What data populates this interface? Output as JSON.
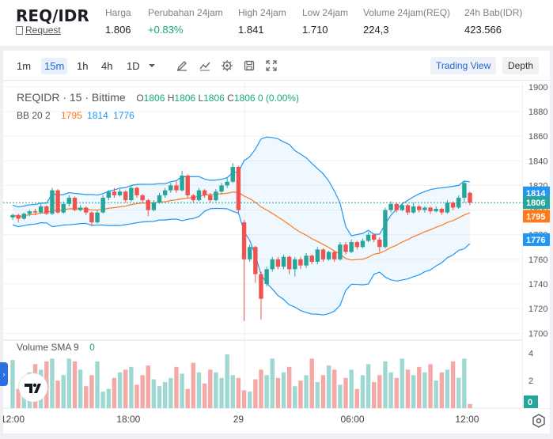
{
  "ticker": {
    "pair": "REQ/IDR",
    "link": "Request",
    "stats": [
      {
        "label": "Harga",
        "value": "1.806"
      },
      {
        "label": "Perubahan 24jam",
        "value": "+0.83%"
      },
      {
        "label": "High 24jam",
        "value": "1.841"
      },
      {
        "label": "Low 24jam",
        "value": "1.710"
      },
      {
        "label": "Volume 24jam(REQ)",
        "value": "224,3"
      },
      {
        "label": "24h Bab(IDR)",
        "value": "423.566"
      }
    ]
  },
  "toolbar": {
    "timeframes": [
      "1m",
      "15m",
      "1h",
      "4h",
      "1D"
    ],
    "active_timeframe": "15m",
    "icons": [
      "dropdown-caret-icon",
      "draw-pen-icon",
      "indicator-icon",
      "settings-gear-icon",
      "save-icon",
      "fullscreen-icon"
    ],
    "views": [
      "Trading View",
      "Depth"
    ],
    "active_view": "Trading View"
  },
  "legend": {
    "symbol": "REQIDR · 15 · Bittime",
    "o_label": "O",
    "o": "1806",
    "h_label": "H",
    "h": "1806",
    "l_label": "L",
    "l": "1806",
    "c_label": "C",
    "c": "1806",
    "change": "0 (0.00%)",
    "bb_label": "BB 20 2",
    "bb_basis": "1795",
    "bb_upper": "1814",
    "bb_lower": "1776",
    "volume_label": "Volume SMA 9",
    "volume_value": "0"
  },
  "colors": {
    "up": "#26a69a",
    "down": "#ef5350",
    "basis": "#ff7a1a",
    "band": "#2196f3",
    "up_vol": "#9fd8d2",
    "down_vol": "#f5a9a7"
  },
  "chart_data": {
    "type": "candlestick",
    "price_axis": {
      "ticks": [
        1700,
        1720,
        1740,
        1760,
        1780,
        1800,
        1820,
        1840,
        1860,
        1880,
        1900
      ],
      "range": [
        1697,
        1905
      ]
    },
    "time_axis": {
      "ticks": [
        "12:00",
        "18:00",
        "29",
        "06:00",
        "12:00"
      ]
    },
    "volume_axis": {
      "ticks": [
        2,
        4
      ],
      "range": [
        0,
        4.6
      ]
    },
    "price_labels": [
      {
        "text": "1814",
        "value": 1814,
        "color": "#2196f3"
      },
      {
        "text": "1806",
        "value": 1806,
        "color": "#26a69a"
      },
      {
        "text": "1795",
        "value": 1795,
        "color": "#ff7a1a"
      },
      {
        "text": "1776",
        "value": 1776,
        "color": "#2196f3"
      }
    ],
    "volume_label": {
      "text": "0",
      "color": "#26a69a"
    },
    "candles": [
      {
        "o": 1794,
        "c": 1796,
        "h": 1797,
        "l": 1792
      },
      {
        "o": 1796,
        "c": 1793,
        "h": 1797,
        "l": 1790
      },
      {
        "o": 1793,
        "c": 1797,
        "h": 1798,
        "l": 1792
      },
      {
        "o": 1797,
        "c": 1799,
        "h": 1800,
        "l": 1795
      },
      {
        "o": 1799,
        "c": 1798,
        "h": 1801,
        "l": 1796
      },
      {
        "o": 1798,
        "c": 1803,
        "h": 1805,
        "l": 1797
      },
      {
        "o": 1803,
        "c": 1797,
        "h": 1804,
        "l": 1796
      },
      {
        "o": 1797,
        "c": 1816,
        "h": 1818,
        "l": 1796
      },
      {
        "o": 1816,
        "c": 1798,
        "h": 1817,
        "l": 1797
      },
      {
        "o": 1798,
        "c": 1805,
        "h": 1807,
        "l": 1797
      },
      {
        "o": 1805,
        "c": 1810,
        "h": 1812,
        "l": 1803
      },
      {
        "o": 1810,
        "c": 1800,
        "h": 1811,
        "l": 1799
      },
      {
        "o": 1800,
        "c": 1802,
        "h": 1804,
        "l": 1799
      },
      {
        "o": 1802,
        "c": 1798,
        "h": 1803,
        "l": 1796
      },
      {
        "o": 1798,
        "c": 1790,
        "h": 1799,
        "l": 1787
      },
      {
        "o": 1790,
        "c": 1798,
        "h": 1800,
        "l": 1789
      },
      {
        "o": 1798,
        "c": 1810,
        "h": 1812,
        "l": 1797
      },
      {
        "o": 1810,
        "c": 1815,
        "h": 1816,
        "l": 1808
      },
      {
        "o": 1815,
        "c": 1812,
        "h": 1818,
        "l": 1810
      },
      {
        "o": 1812,
        "c": 1815,
        "h": 1817,
        "l": 1811
      },
      {
        "o": 1815,
        "c": 1808,
        "h": 1816,
        "l": 1806
      },
      {
        "o": 1808,
        "c": 1818,
        "h": 1820,
        "l": 1807
      },
      {
        "o": 1818,
        "c": 1812,
        "h": 1819,
        "l": 1810
      },
      {
        "o": 1812,
        "c": 1808,
        "h": 1813,
        "l": 1806
      },
      {
        "o": 1808,
        "c": 1800,
        "h": 1809,
        "l": 1795
      },
      {
        "o": 1800,
        "c": 1806,
        "h": 1808,
        "l": 1799
      },
      {
        "o": 1806,
        "c": 1812,
        "h": 1814,
        "l": 1805
      },
      {
        "o": 1812,
        "c": 1816,
        "h": 1818,
        "l": 1810
      },
      {
        "o": 1816,
        "c": 1820,
        "h": 1822,
        "l": 1814
      },
      {
        "o": 1820,
        "c": 1816,
        "h": 1824,
        "l": 1814
      },
      {
        "o": 1816,
        "c": 1828,
        "h": 1832,
        "l": 1815
      },
      {
        "o": 1828,
        "c": 1812,
        "h": 1829,
        "l": 1810
      },
      {
        "o": 1812,
        "c": 1808,
        "h": 1813,
        "l": 1806
      },
      {
        "o": 1808,
        "c": 1816,
        "h": 1818,
        "l": 1807
      },
      {
        "o": 1816,
        "c": 1812,
        "h": 1817,
        "l": 1810
      },
      {
        "o": 1812,
        "c": 1808,
        "h": 1814,
        "l": 1806
      },
      {
        "o": 1808,
        "c": 1815,
        "h": 1817,
        "l": 1807
      },
      {
        "o": 1815,
        "c": 1820,
        "h": 1822,
        "l": 1813
      },
      {
        "o": 1820,
        "c": 1823,
        "h": 1826,
        "l": 1818
      },
      {
        "o": 1823,
        "c": 1835,
        "h": 1838,
        "l": 1822
      },
      {
        "o": 1835,
        "c": 1800,
        "h": 1836,
        "l": 1798
      },
      {
        "o": 1790,
        "c": 1760,
        "h": 1792,
        "l": 1710
      },
      {
        "o": 1760,
        "c": 1770,
        "h": 1772,
        "l": 1758
      },
      {
        "o": 1770,
        "c": 1748,
        "h": 1771,
        "l": 1741
      },
      {
        "o": 1748,
        "c": 1728,
        "h": 1750,
        "l": 1711
      },
      {
        "o": 1740,
        "c": 1752,
        "h": 1754,
        "l": 1738
      },
      {
        "o": 1752,
        "c": 1760,
        "h": 1762,
        "l": 1750
      },
      {
        "o": 1760,
        "c": 1754,
        "h": 1762,
        "l": 1752
      },
      {
        "o": 1754,
        "c": 1762,
        "h": 1764,
        "l": 1752
      },
      {
        "o": 1762,
        "c": 1752,
        "h": 1763,
        "l": 1748
      },
      {
        "o": 1752,
        "c": 1760,
        "h": 1762,
        "l": 1746
      },
      {
        "o": 1760,
        "c": 1755,
        "h": 1762,
        "l": 1752
      },
      {
        "o": 1755,
        "c": 1763,
        "h": 1765,
        "l": 1753
      },
      {
        "o": 1763,
        "c": 1758,
        "h": 1764,
        "l": 1756
      },
      {
        "o": 1758,
        "c": 1768,
        "h": 1770,
        "l": 1756
      },
      {
        "o": 1768,
        "c": 1760,
        "h": 1769,
        "l": 1758
      },
      {
        "o": 1760,
        "c": 1766,
        "h": 1767,
        "l": 1759
      },
      {
        "o": 1766,
        "c": 1760,
        "h": 1767,
        "l": 1758
      },
      {
        "o": 1760,
        "c": 1772,
        "h": 1774,
        "l": 1759
      },
      {
        "o": 1772,
        "c": 1766,
        "h": 1774,
        "l": 1764
      },
      {
        "o": 1766,
        "c": 1774,
        "h": 1776,
        "l": 1765
      },
      {
        "o": 1774,
        "c": 1770,
        "h": 1775,
        "l": 1768
      },
      {
        "o": 1770,
        "c": 1775,
        "h": 1777,
        "l": 1769
      },
      {
        "o": 1775,
        "c": 1780,
        "h": 1782,
        "l": 1774
      },
      {
        "o": 1780,
        "c": 1776,
        "h": 1781,
        "l": 1774
      },
      {
        "o": 1776,
        "c": 1770,
        "h": 1778,
        "l": 1766
      },
      {
        "o": 1770,
        "c": 1800,
        "h": 1802,
        "l": 1769
      },
      {
        "o": 1800,
        "c": 1805,
        "h": 1807,
        "l": 1798
      },
      {
        "o": 1805,
        "c": 1800,
        "h": 1806,
        "l": 1798
      },
      {
        "o": 1800,
        "c": 1804,
        "h": 1806,
        "l": 1799
      },
      {
        "o": 1804,
        "c": 1798,
        "h": 1805,
        "l": 1796
      },
      {
        "o": 1798,
        "c": 1803,
        "h": 1806,
        "l": 1797
      },
      {
        "o": 1803,
        "c": 1800,
        "h": 1804,
        "l": 1798
      },
      {
        "o": 1800,
        "c": 1802,
        "h": 1803,
        "l": 1798
      },
      {
        "o": 1802,
        "c": 1799,
        "h": 1803,
        "l": 1797
      },
      {
        "o": 1799,
        "c": 1801,
        "h": 1803,
        "l": 1798
      },
      {
        "o": 1801,
        "c": 1798,
        "h": 1802,
        "l": 1796
      },
      {
        "o": 1798,
        "c": 1806,
        "h": 1808,
        "l": 1797
      },
      {
        "o": 1806,
        "c": 1802,
        "h": 1807,
        "l": 1800
      },
      {
        "o": 1802,
        "c": 1810,
        "h": 1812,
        "l": 1801
      },
      {
        "o": 1810,
        "c": 1822,
        "h": 1824,
        "l": 1806
      },
      {
        "o": 1814,
        "c": 1806,
        "h": 1815,
        "l": 1804
      }
    ],
    "volume": [
      3.5,
      1.4,
      2.1,
      2.6,
      3.2,
      2.8,
      3.4,
      3.6,
      2.0,
      2.4,
      3.6,
      3.4,
      2.8,
      1.6,
      2.4,
      3.4,
      1.2,
      1.4,
      2.2,
      2.6,
      2.8,
      3.0,
      1.7,
      2.4,
      3.1,
      2.1,
      1.6,
      1.9,
      2.2,
      3.0,
      2.5,
      1.4,
      3.3,
      2.6,
      1.8,
      2.8,
      2.6,
      2.2,
      3.9,
      2.4,
      2.2,
      1.3,
      1.2,
      2.1,
      2.8,
      2.4,
      3.6,
      2.2,
      2.6,
      3.0,
      1.6,
      2.0,
      2.4,
      3.6,
      1.9,
      2.4,
      3.1,
      2.8,
      1.7,
      2.2,
      2.8,
      1.4,
      2.4,
      3.2,
      1.9,
      2.4,
      3.4,
      2.6,
      2.2,
      3.6,
      2.8,
      2.4,
      3.0,
      2.6,
      3.2,
      2.0,
      2.6,
      2.8,
      3.4,
      2.2,
      3.6,
      0.3
    ]
  }
}
